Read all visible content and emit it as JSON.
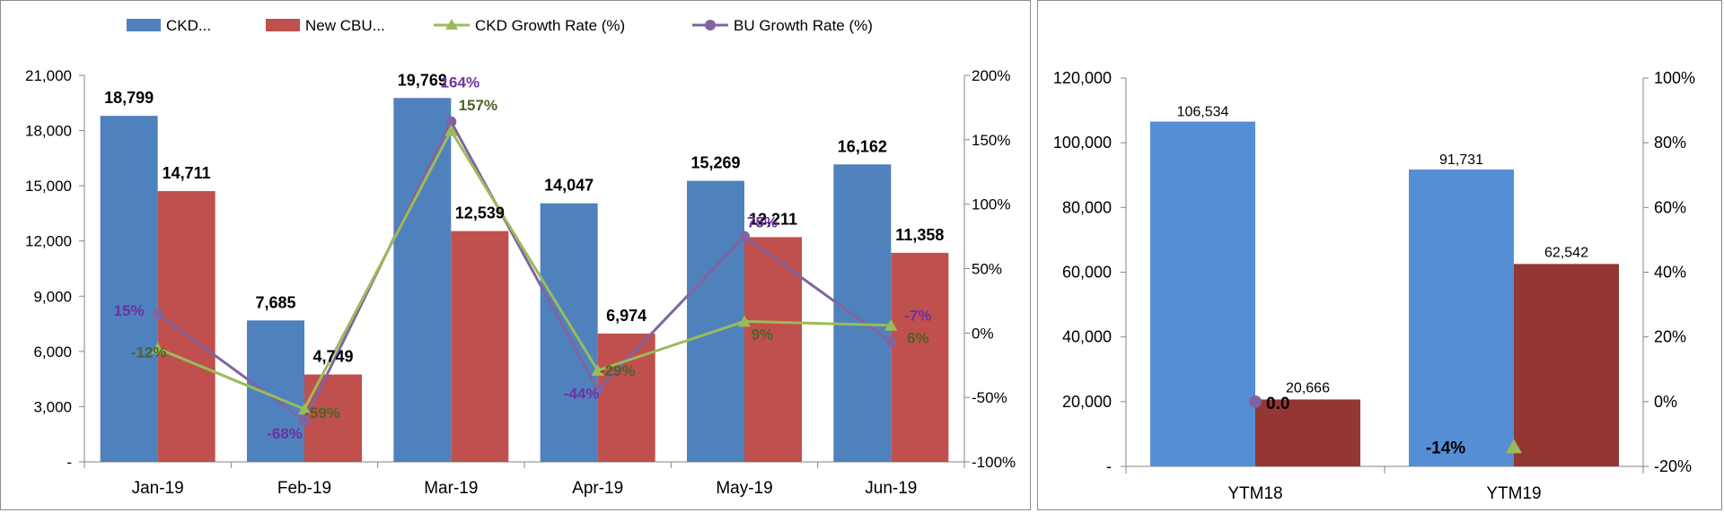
{
  "colors": {
    "ckd_bar": "#4f81bd",
    "cbu_bar": "#c0504d",
    "ckd_line": "#9bbb59",
    "bu_line": "#8064a2",
    "ckd_label": "#4f6228",
    "bu_label": "#7030a0",
    "ytm_ckd_bar": "#558ed5",
    "ytm_cbu_bar": "#943634"
  },
  "chart_data": [
    {
      "type": "bar",
      "legend": [
        "CKD...",
        "New CBU...",
        "CKD Growth Rate (%)",
        "BU Growth Rate (%)"
      ],
      "categories": [
        "Jan-19",
        "Feb-19",
        "Mar-19",
        "Apr-19",
        "May-19",
        "Jun-19"
      ],
      "y_ticks": [
        "21,000",
        "18,000",
        "15,000",
        "12,000",
        "9,000",
        "6,000",
        "3,000",
        "-"
      ],
      "y2_ticks": [
        "200%",
        "150%",
        "100%",
        "50%",
        "0%",
        "-50%",
        "-100%"
      ],
      "ylim": [
        0,
        21000
      ],
      "y2lim": [
        -100,
        200
      ],
      "series": [
        {
          "name": "CKD...",
          "type": "bar",
          "values": [
            18799,
            7685,
            19769,
            14047,
            15269,
            16162
          ],
          "labels": [
            "18,799",
            "7,685",
            "19,769",
            "14,047",
            "15,269",
            "16,162"
          ]
        },
        {
          "name": "New CBU...",
          "type": "bar",
          "values": [
            14711,
            4749,
            12539,
            6974,
            12211,
            11358
          ],
          "labels": [
            "14,711",
            "4,749",
            "12,539",
            "6,974",
            "12,211",
            "11,358"
          ]
        },
        {
          "name": "CKD Growth Rate (%)",
          "type": "line",
          "axis": "y2",
          "values": [
            -12,
            -59,
            157,
            -29,
            9,
            6
          ],
          "labels": [
            "-12%",
            "-59%",
            "157%",
            "-29%",
            "9%",
            "6%"
          ]
        },
        {
          "name": "BU Growth Rate (%)",
          "type": "line",
          "axis": "y2",
          "values": [
            15,
            -68,
            164,
            -44,
            75,
            -7
          ],
          "labels": [
            "15%",
            "-68%",
            "164%",
            "-44%",
            "75%",
            "-7%"
          ]
        }
      ]
    },
    {
      "type": "bar",
      "categories": [
        "YTM18",
        "YTM19"
      ],
      "y_ticks": [
        "120,000",
        "100,000",
        "80,000",
        "60,000",
        "40,000",
        "20,000",
        "-"
      ],
      "y2_ticks": [
        "100%",
        "80%",
        "60%",
        "40%",
        "20%",
        "0%",
        "-20%"
      ],
      "ylim": [
        0,
        120000
      ],
      "y2lim": [
        -20,
        100
      ],
      "series": [
        {
          "type": "bar",
          "values": [
            106534,
            91731
          ],
          "labels": [
            "106,534",
            "91,731"
          ]
        },
        {
          "type": "bar",
          "values": [
            20666,
            62542
          ],
          "labels": [
            "20,666",
            "62,542"
          ]
        },
        {
          "type": "point",
          "axis": "y2",
          "values": [
            0,
            null
          ],
          "labels": [
            "0.0",
            ""
          ]
        },
        {
          "type": "point",
          "axis": "y2",
          "values": [
            null,
            -14
          ],
          "labels": [
            "",
            "-14%"
          ]
        }
      ]
    }
  ]
}
